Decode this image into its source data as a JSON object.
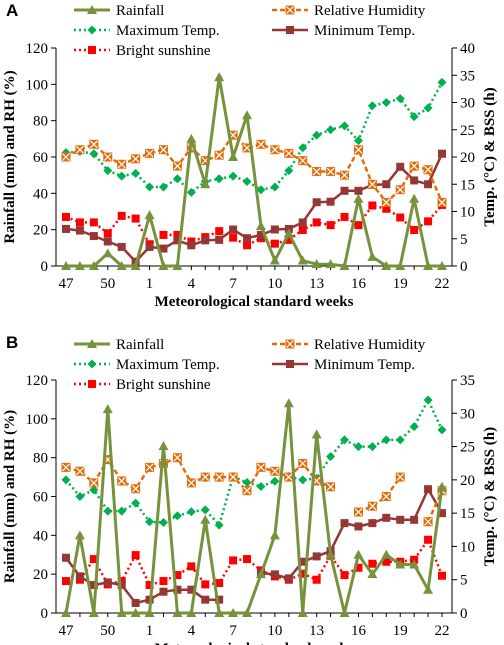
{
  "chart_data": [
    {
      "panel": "A",
      "type": "line",
      "xlabel": "Meteorological standard weeks",
      "ylabel_left": "Rainfall (mm) and RH (%)",
      "ylabel_right": "Temp. (°C) & BSS (h)",
      "ylim_left": [
        0,
        120
      ],
      "ylim_right": [
        0,
        40
      ],
      "yticks_left": [
        "0",
        "20",
        "40",
        "60",
        "80",
        "100",
        "120"
      ],
      "yticks_right": [
        "0",
        "5",
        "10",
        "15",
        "20",
        "25",
        "30",
        "35",
        "40"
      ],
      "xticks": [
        "47",
        "50",
        "1",
        "4",
        "7",
        "10",
        "13",
        "16",
        "19",
        "22"
      ],
      "weeks": [
        47,
        48,
        49,
        50,
        51,
        52,
        1,
        2,
        3,
        4,
        5,
        6,
        7,
        8,
        9,
        10,
        11,
        12,
        13,
        14,
        15,
        16,
        17,
        18,
        19,
        20,
        21,
        22
      ],
      "series": [
        {
          "name": "Rainfall",
          "axis": "left",
          "color": "#76923c",
          "marker": "triangle",
          "values": [
            0,
            0,
            0,
            7,
            0,
            0,
            28,
            0,
            0,
            70,
            45,
            104,
            60,
            83,
            22,
            3,
            18,
            3,
            1,
            1,
            0,
            37,
            5,
            0,
            0,
            37,
            0,
            0
          ]
        },
        {
          "name": "Relative Humidity",
          "axis": "left",
          "color": "#e36c0a",
          "marker": "x",
          "values": [
            60,
            64,
            67,
            60,
            56,
            59,
            62,
            64,
            55,
            65,
            58,
            61,
            72,
            65,
            67,
            64,
            62,
            58,
            52,
            52,
            50,
            64,
            45,
            35,
            42,
            55,
            53,
            35
          ]
        },
        {
          "name": "Maximum Temp.",
          "axis": "right",
          "color": "#00b050",
          "marker": "diamond",
          "values": [
            20.8,
            21,
            20.6,
            17.5,
            16.5,
            17,
            14.5,
            14.5,
            16,
            13.5,
            15.5,
            16,
            16.5,
            15.5,
            14,
            14.5,
            17.5,
            21.7,
            24,
            25,
            25.7,
            23,
            29.4,
            30,
            30.7,
            27.4,
            29,
            33.7
          ]
        },
        {
          "name": "Minimum Temp.",
          "axis": "right",
          "color": "#953735",
          "marker": "square",
          "values": [
            6.8,
            6.5,
            5.5,
            4.5,
            3.5,
            0.8,
            3.5,
            3.2,
            4.7,
            3.8,
            4.7,
            4.8,
            6.7,
            5.1,
            5.7,
            6.7,
            6.8,
            8,
            11.7,
            11.8,
            13.8,
            13.8,
            14.9,
            15,
            18.2,
            15.7,
            15,
            20.6
          ]
        },
        {
          "name": "Bright sunshine",
          "axis": "right",
          "color": "#ff0000",
          "marker": "square",
          "values": [
            9,
            8,
            8,
            6,
            9.2,
            8.7,
            4,
            5.7,
            5.7,
            4.5,
            5.3,
            6.4,
            5.2,
            3.8,
            5.1,
            4.1,
            4.8,
            6.6,
            8,
            7.5,
            9,
            7.5,
            11.1,
            10.5,
            8.9,
            6.6,
            8.2,
            11.2
          ]
        }
      ]
    },
    {
      "panel": "B",
      "type": "line",
      "xlabel": "Meteorological standard weeks",
      "ylabel_left": "Rainfall (mm) and RH (%)",
      "ylabel_right": "Temp. (°C) & BSS (h)",
      "ylim_left": [
        0,
        120
      ],
      "ylim_right": [
        0,
        35
      ],
      "yticks_left": [
        "0",
        "20",
        "40",
        "60",
        "80",
        "100",
        "120"
      ],
      "yticks_right": [
        "0",
        "5",
        "10",
        "15",
        "20",
        "25",
        "30",
        "35"
      ],
      "xticks": [
        "47",
        "50",
        "1",
        "4",
        "7",
        "10",
        "13",
        "16",
        "19",
        "22"
      ],
      "weeks": [
        47,
        48,
        49,
        50,
        51,
        52,
        1,
        2,
        3,
        4,
        5,
        6,
        7,
        8,
        9,
        10,
        11,
        12,
        13,
        14,
        15,
        16,
        17,
        18,
        19,
        20,
        21,
        22
      ],
      "series": [
        {
          "name": "Rainfall",
          "axis": "left",
          "color": "#76923c",
          "marker": "triangle",
          "values": [
            0,
            40,
            0,
            105,
            0,
            0,
            0,
            86,
            0,
            0,
            48,
            0,
            0,
            0,
            20,
            40,
            108,
            0,
            92,
            30,
            0,
            30,
            20,
            30,
            25,
            25,
            12,
            65
          ]
        },
        {
          "name": "Relative Humidity",
          "axis": "left",
          "color": "#e36c0a",
          "marker": "x",
          "values": [
            75,
            73,
            67,
            79,
            68,
            64,
            75,
            77,
            80,
            67,
            70,
            70,
            70,
            63,
            75,
            73,
            70,
            77,
            68,
            65,
            null,
            52,
            55,
            60,
            70,
            null,
            47,
            63
          ]
        },
        {
          "name": "Maximum Temp.",
          "axis": "right",
          "color": "#00b050",
          "marker": "diamond",
          "values": [
            20,
            17.5,
            18.5,
            15.3,
            15.3,
            16.5,
            13.7,
            13.6,
            14.6,
            15.2,
            15.5,
            13.2,
            20.5,
            19.6,
            19,
            19.8,
            20.5,
            20,
            20.2,
            23.5,
            26,
            25,
            25,
            26,
            26,
            28,
            32,
            27.5
          ]
        },
        {
          "name": "Minimum Temp.",
          "axis": "right",
          "color": "#953735",
          "marker": "square",
          "values": [
            8.3,
            5.5,
            4.2,
            4.6,
            4.2,
            1.5,
            2,
            3.2,
            3.5,
            3.5,
            2,
            2,
            null,
            null,
            6,
            5.8,
            5.2,
            7.7,
            8.5,
            9.3,
            13.5,
            13,
            13.5,
            14.3,
            14,
            14,
            18.6,
            15
          ]
        },
        {
          "name": "Bright sunshine",
          "axis": "right",
          "color": "#ff0000",
          "marker": "square",
          "values": [
            4.8,
            5,
            8.1,
            4.3,
            4.8,
            8.7,
            4.2,
            4.8,
            5.7,
            7,
            4.3,
            4.5,
            7.9,
            8.1,
            6.4,
            5.5,
            5,
            5.9,
            5,
            8.6,
            5.7,
            6.8,
            7.4,
            7.7,
            7.7,
            8,
            11,
            5.6
          ]
        }
      ]
    }
  ]
}
